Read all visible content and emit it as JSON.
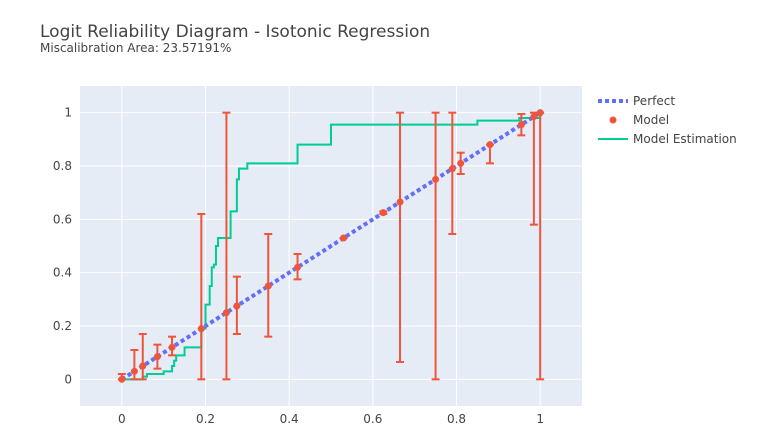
{
  "chart_data": {
    "type": "scatter",
    "title": "Logit Reliability Diagram - Isotonic Regression",
    "subtitle": "Miscalibration Area: 23.57191%",
    "xlabel": "",
    "ylabel": "",
    "xlim": [
      -0.1,
      1.1
    ],
    "ylim": [
      -0.1,
      1.1
    ],
    "x_ticks": [
      0,
      0.2,
      0.4,
      0.6,
      0.8,
      1
    ],
    "x_tick_labels": [
      "0",
      "0.2",
      "0.4",
      "0.6",
      "0.8",
      "1"
    ],
    "y_ticks": [
      0,
      0.2,
      0.4,
      0.6,
      0.8,
      1
    ],
    "y_tick_labels": [
      "0",
      "0.2",
      "0.4",
      "0.6",
      "0.8",
      "1"
    ],
    "grid": true,
    "legend_position": "top-right",
    "colors": {
      "perfect": "#636efa",
      "model": "#ef553b",
      "estimation": "#00cc96",
      "plot_bg": "#e5ecf6",
      "grid": "#ffffff"
    },
    "series": [
      {
        "name": "Perfect",
        "kind": "line",
        "style": "dot",
        "x": [
          0,
          1
        ],
        "y": [
          0,
          1
        ]
      },
      {
        "name": "Model",
        "kind": "markers",
        "x": [
          0.0,
          0.03,
          0.05,
          0.085,
          0.12,
          0.19,
          0.25,
          0.275,
          0.35,
          0.42,
          0.53,
          0.625,
          0.665,
          0.75,
          0.79,
          0.81,
          0.88,
          0.955,
          0.985,
          1.0
        ],
        "y": [
          0.0,
          0.03,
          0.05,
          0.085,
          0.12,
          0.19,
          0.25,
          0.275,
          0.35,
          0.42,
          0.53,
          0.625,
          0.665,
          0.75,
          0.79,
          0.81,
          0.88,
          0.955,
          0.985,
          1.0
        ],
        "error_low": [
          0.0,
          0.0,
          0.0,
          0.04,
          0.09,
          0.0,
          0.0,
          0.17,
          0.16,
          0.375,
          0.53,
          0.62,
          0.065,
          0.0,
          0.545,
          0.77,
          0.81,
          0.915,
          0.58,
          0.0
        ],
        "error_high": [
          0.02,
          0.11,
          0.17,
          0.13,
          0.16,
          0.62,
          1.0,
          0.385,
          0.545,
          0.47,
          0.53,
          0.63,
          1.0,
          1.0,
          1.0,
          0.85,
          0.88,
          0.995,
          1.0,
          1.0
        ]
      },
      {
        "name": "Model Estimation",
        "kind": "line",
        "style": "step",
        "x": [
          0,
          0.05,
          0.06,
          0.09,
          0.1,
          0.12,
          0.125,
          0.13,
          0.15,
          0.18,
          0.19,
          0.2,
          0.21,
          0.215,
          0.22,
          0.225,
          0.23,
          0.25,
          0.26,
          0.275,
          0.28,
          0.3,
          0.42,
          0.5,
          0.82,
          0.85,
          0.95,
          0.97,
          0.985,
          1.0
        ],
        "y": [
          0,
          0.01,
          0.02,
          0.02,
          0.03,
          0.05,
          0.07,
          0.09,
          0.12,
          0.12,
          0.19,
          0.28,
          0.35,
          0.42,
          0.43,
          0.5,
          0.53,
          0.53,
          0.63,
          0.75,
          0.79,
          0.81,
          0.88,
          0.955,
          0.955,
          0.97,
          0.98,
          0.98,
          0.98,
          1.0
        ]
      }
    ]
  }
}
